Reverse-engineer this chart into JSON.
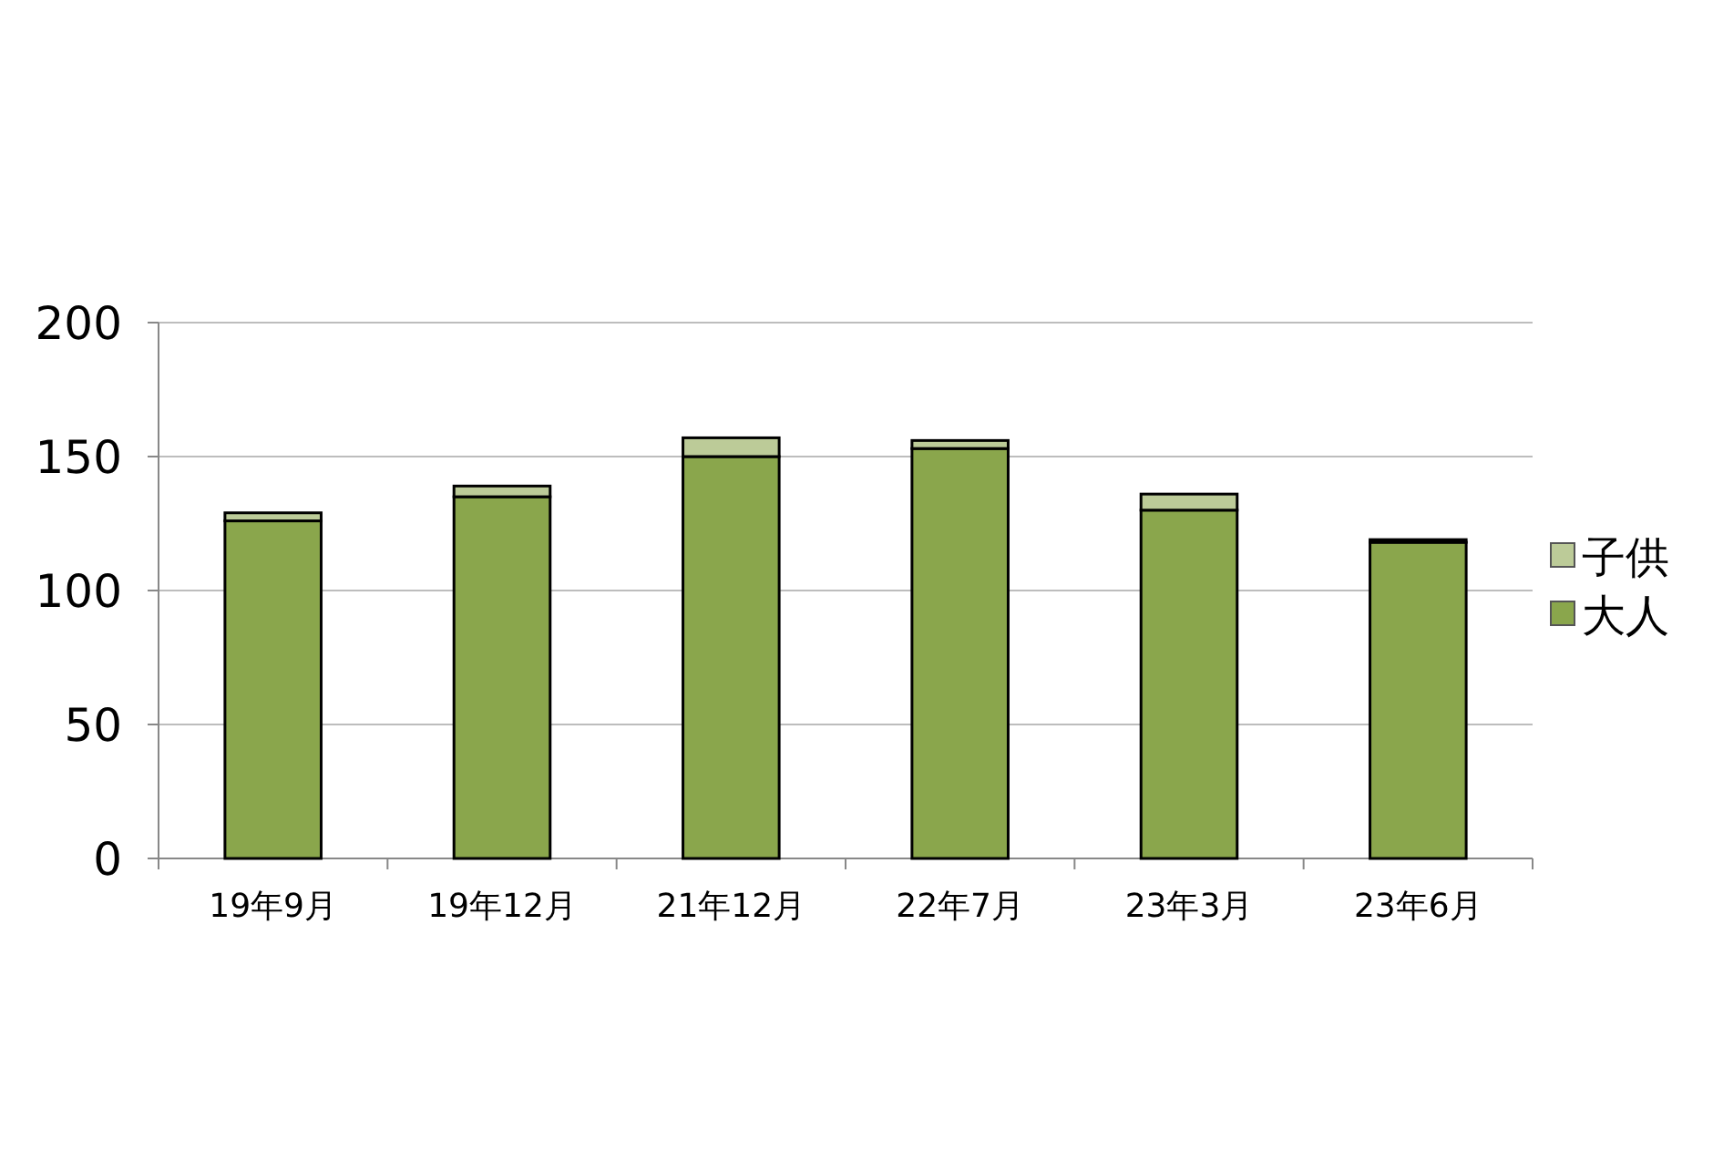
{
  "chart_data": {
    "type": "bar",
    "stacked": true,
    "categories": [
      "19年9月",
      "19年12月",
      "21年12月",
      "22年7月",
      "23年3月",
      "23年6月"
    ],
    "series": [
      {
        "name": "大人",
        "color": "#8aa64c",
        "values": [
          126,
          135,
          150,
          153,
          130,
          118
        ]
      },
      {
        "name": "子供",
        "color": "#bccb98",
        "values": [
          3,
          4,
          7,
          3,
          6,
          1
        ]
      }
    ],
    "ylim": [
      0,
      200
    ],
    "yticks": [
      0,
      50,
      100,
      150,
      200
    ],
    "grid": "y",
    "legend": "right"
  }
}
